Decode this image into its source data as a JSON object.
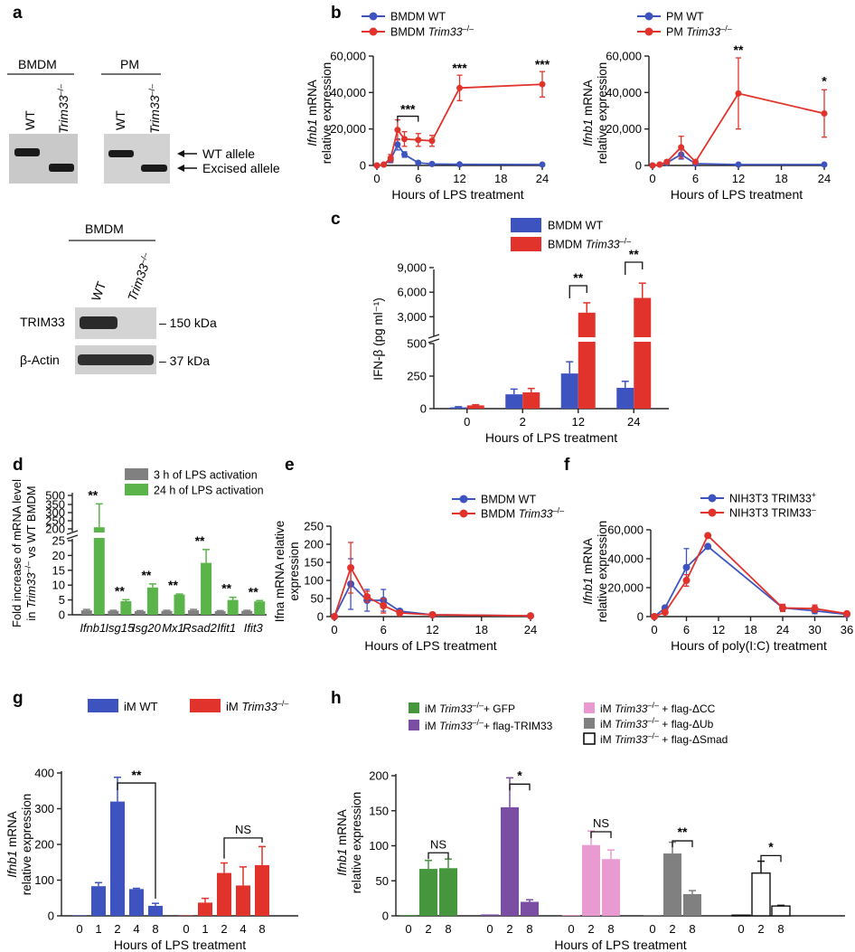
{
  "colors": {
    "wt": "#3d54c0",
    "ko": "#e1332b",
    "grey": "#808080",
    "green": "#5bb449",
    "green_dark": "#45963d",
    "purple": "#7a4ea3",
    "pink": "#e99ad0",
    "white": "#ffffff"
  },
  "panel_labels": {
    "a": "a",
    "b": "b",
    "c": "c",
    "d": "d",
    "e": "e",
    "f": "f",
    "g": "g",
    "h": "h"
  },
  "gels": {
    "bmdm_label": "BMDM",
    "pm_label": "PM",
    "lane_wt": "WT",
    "lane_ko": "Trim33",
    "ko_sup": "–/–",
    "wt_allele": "WT allele",
    "excised_allele": "Excised allele",
    "blot_cell": "BMDM",
    "trim33": "TRIM33",
    "actin": "β-Actin",
    "mw_150": "– 150 kDa",
    "mw_37": "– 37 kDa"
  },
  "chart_data": [
    {
      "id": "b1",
      "type": "line",
      "ylabel_gene": "Ifnb1",
      "ylabel_rest": " mRNA",
      "ylabel2": "relative expression",
      "xlabel": "Hours of LPS treatment",
      "xlim": [
        0,
        24
      ],
      "ylim": [
        0,
        60000
      ],
      "xticks": [
        "0",
        "6",
        "12",
        "18",
        "24"
      ],
      "yticks": [
        "0",
        "20,000",
        "40,000",
        "60,000"
      ],
      "series": [
        {
          "name": "BMDM WT",
          "x": [
            0,
            1,
            2,
            3,
            4,
            6,
            8,
            12,
            24
          ],
          "y": [
            0,
            500,
            3000,
            11500,
            6000,
            1500,
            800,
            600,
            500
          ],
          "err": [
            0,
            300,
            1500,
            3000,
            1500,
            500,
            300,
            200,
            200
          ]
        },
        {
          "name_prefix": "BMDM ",
          "name_gene": "Trim33",
          "name_sup": "–/–",
          "x": [
            0,
            1,
            2,
            3,
            4,
            6,
            8,
            12,
            24
          ],
          "y": [
            0,
            500,
            4000,
            19500,
            14500,
            14000,
            13500,
            42500,
            44500
          ],
          "err": [
            0,
            300,
            2000,
            5500,
            4000,
            3500,
            3000,
            7000,
            7000
          ]
        }
      ],
      "annotations": [
        "***",
        "***",
        "***"
      ]
    },
    {
      "id": "b2",
      "type": "line",
      "ylabel_gene": "Ifnb1",
      "ylabel_rest": " mRNA",
      "ylabel2": "relative expression",
      "xlabel": "Hours of LPS treatment",
      "xlim": [
        0,
        24
      ],
      "ylim": [
        0,
        60000
      ],
      "xticks": [
        "0",
        "6",
        "12",
        "18",
        "24"
      ],
      "yticks": [
        "0",
        "20,000",
        "40,000",
        "60,000"
      ],
      "series": [
        {
          "name": "PM WT",
          "x": [
            0,
            1,
            2,
            4,
            6,
            12,
            24
          ],
          "y": [
            0,
            500,
            1500,
            6000,
            1000,
            500,
            500
          ],
          "err": [
            0,
            300,
            700,
            2500,
            500,
            200,
            200
          ]
        },
        {
          "name_prefix": "PM ",
          "name_gene": "Trim33",
          "name_sup": "–/–",
          "x": [
            0,
            1,
            2,
            4,
            6,
            12,
            24
          ],
          "y": [
            0,
            500,
            2000,
            10000,
            2000,
            39500,
            28500
          ],
          "err": [
            0,
            300,
            800,
            6000,
            1000,
            19500,
            13000
          ]
        }
      ],
      "annotations": [
        "**",
        "*"
      ]
    },
    {
      "id": "c",
      "type": "bar",
      "ylabel": "IFN-β (pg ml⁻¹)",
      "xlabel": "Hours of LPS treatment",
      "categories": [
        "0",
        "2",
        "12",
        "24"
      ],
      "yticks_low": [
        "0",
        "250",
        "500"
      ],
      "yticks_high": [
        "3,000",
        "6,000",
        "9,000"
      ],
      "series": [
        {
          "name": "BMDM WT",
          "values": [
            10,
            110,
            270,
            160
          ],
          "err": [
            5,
            40,
            90,
            50
          ]
        },
        {
          "name_prefix": "BMDM ",
          "name_gene": "Trim33",
          "name_sup": "–/–",
          "values": [
            25,
            125,
            3500,
            5300
          ],
          "err": [
            5,
            30,
            1200,
            1800
          ]
        }
      ],
      "annotations": [
        "**",
        "**"
      ]
    },
    {
      "id": "d",
      "type": "bar",
      "ylabel1": "Fold increase of mRNA level",
      "ylabel2_pre": "in ",
      "ylabel2_gene": "Trim33",
      "ylabel2_sup": "–/–",
      "ylabel2_post": " vs WT BMDM",
      "categories": [
        "Ifnb1",
        "Isg15",
        "Isg20",
        "Mx1",
        "Rsad2",
        "Ifit1",
        "Ifit3"
      ],
      "yticks_low": [
        "0",
        "5",
        "10",
        "15",
        "20",
        "25"
      ],
      "yticks_high": [
        "200",
        "250",
        "300",
        "350",
        "500"
      ],
      "series": [
        {
          "name": "3 h of LPS activation",
          "values": [
            1.5,
            1.3,
            1.2,
            1.3,
            1.5,
            1.2,
            1.3
          ],
          "err": [
            0.3,
            0.2,
            0.2,
            0.2,
            0.3,
            0.2,
            0.2
          ]
        },
        {
          "name": "24 h of LPS activation",
          "values": [
            210,
            4.6,
            9.2,
            6.8,
            17.5,
            5.0,
            4.5
          ],
          "err": [
            150,
            0.5,
            1.2,
            0.2,
            4.5,
            0.9,
            0.3
          ]
        }
      ],
      "annotations": [
        "**",
        "**",
        "**",
        "**",
        "**",
        "**",
        "**"
      ]
    },
    {
      "id": "e",
      "type": "line",
      "ylabel1": "Ifna mRNA relative",
      "ylabel2": "expression",
      "xlabel": "Hours of LPS treatment",
      "xlim": [
        0,
        24
      ],
      "ylim": [
        0,
        250
      ],
      "xticks": [
        "0",
        "6",
        "12",
        "18",
        "24"
      ],
      "yticks": [
        "0",
        "50",
        "100",
        "150",
        "200",
        "250"
      ],
      "series": [
        {
          "name": "BMDM WT",
          "x": [
            0,
            2,
            4,
            6,
            8,
            12,
            24
          ],
          "y": [
            0,
            90,
            45,
            45,
            15,
            5,
            2
          ],
          "err": [
            0,
            70,
            30,
            30,
            5,
            3,
            1
          ]
        },
        {
          "name_prefix": "BMDM ",
          "name_gene": "Trim33",
          "name_sup": "–/–",
          "x": [
            0,
            2,
            4,
            6,
            8,
            12,
            24
          ],
          "y": [
            0,
            135,
            55,
            30,
            10,
            5,
            2
          ],
          "err": [
            0,
            70,
            15,
            20,
            5,
            3,
            1
          ]
        }
      ]
    },
    {
      "id": "f",
      "type": "line",
      "ylabel_gene": "Ifnb1",
      "ylabel_rest": " mRNA",
      "ylabel2": "relative expression",
      "xlabel": "Hours of poly(I:C) treatment",
      "xlim": [
        0,
        36
      ],
      "ylim": [
        0,
        60000
      ],
      "xticks": [
        "0",
        "6",
        "12",
        "18",
        "24",
        "30",
        "36"
      ],
      "yticks": [
        "0",
        "20,000",
        "40,000",
        "60,000"
      ],
      "series": [
        {
          "name_prefix": "NIH3T3 TRIM33",
          "name_sup": "+",
          "x": [
            0,
            2,
            6,
            10,
            24,
            30,
            36
          ],
          "y": [
            0,
            6000,
            34000,
            48500,
            6000,
            4000,
            1500
          ],
          "err": [
            0,
            1500,
            13000,
            1000,
            2000,
            2000,
            500
          ]
        },
        {
          "name_prefix": "NIH3T3 TRIM33",
          "name_sup": "–",
          "x": [
            0,
            2,
            6,
            10,
            24,
            30,
            36
          ],
          "y": [
            0,
            3000,
            25000,
            56000,
            6000,
            5500,
            2000
          ],
          "err": [
            0,
            1000,
            4000,
            1000,
            2500,
            2500,
            500
          ]
        }
      ]
    },
    {
      "id": "g",
      "type": "bar",
      "ylabel_gene": "Ifnb1",
      "ylabel_rest": " mRNA",
      "ylabel2": "relative expression",
      "xlabel": "Hours of LPS treatment",
      "categories": [
        "0",
        "1",
        "2",
        "4",
        "8"
      ],
      "ylim": [
        0,
        400
      ],
      "yticks": [
        "0",
        "100",
        "200",
        "300",
        "400"
      ],
      "series": [
        {
          "name": "iM WT",
          "values": [
            1,
            83,
            320,
            75,
            28
          ],
          "err": [
            0,
            10,
            68,
            2,
            7
          ]
        },
        {
          "name_prefix": "iM ",
          "name_gene": "Trim33",
          "name_sup": "–/–",
          "values": [
            1,
            37,
            120,
            85,
            142
          ],
          "err": [
            0,
            12,
            28,
            52,
            52
          ]
        }
      ],
      "annotations": [
        "**",
        "NS"
      ]
    },
    {
      "id": "h",
      "type": "bar",
      "ylabel_gene": "Ifnb1",
      "ylabel_rest": " mRNA",
      "ylabel2": "relative expression",
      "xlabel": "Hours of LPS treatment",
      "categories": [
        "0",
        "2",
        "8"
      ],
      "ylim": [
        0,
        200
      ],
      "yticks": [
        "0",
        "50",
        "100",
        "150",
        "200"
      ],
      "series": [
        {
          "name_prefix": "iM ",
          "name_gene": "Trim33",
          "name_sup": "–/–",
          "name_suffix": "+ GFP",
          "values": [
            1,
            67,
            68
          ],
          "err": [
            0,
            12,
            13
          ]
        },
        {
          "name_prefix": "iM ",
          "name_gene": "Trim33",
          "name_sup": "–/–",
          "name_suffix": "+ flag-TRIM33",
          "values": [
            2,
            155,
            20
          ],
          "err": [
            0,
            42,
            3
          ]
        },
        {
          "name_prefix": "iM ",
          "name_gene": "Trim33",
          "name_sup": "–/–",
          "name_suffix": " + flag-ΔCC",
          "values": [
            1,
            101,
            81
          ],
          "err": [
            0,
            20,
            13
          ]
        },
        {
          "name_prefix": "iM ",
          "name_gene": "Trim33",
          "name_sup": "–/–",
          "name_suffix": " + flag-ΔUb",
          "values": [
            1,
            89,
            31
          ],
          "err": [
            0,
            16,
            5
          ]
        },
        {
          "name_prefix": "iM ",
          "name_gene": "Trim33",
          "name_sup": "–/–",
          "name_suffix": " + flag-ΔSmad",
          "values": [
            1,
            61,
            14
          ],
          "err": [
            0,
            17,
            1
          ]
        }
      ],
      "annotations": [
        "NS",
        "*",
        "NS",
        "**",
        "*"
      ]
    }
  ]
}
